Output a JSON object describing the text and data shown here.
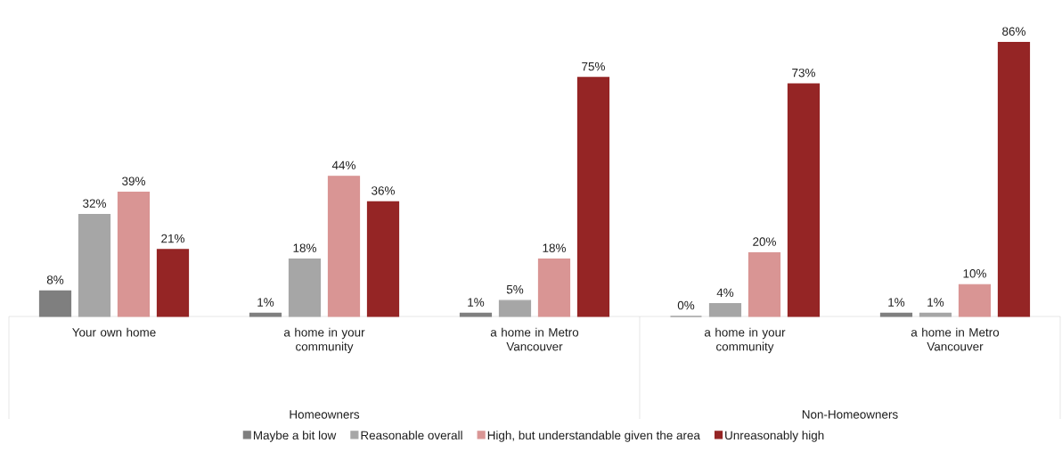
{
  "chart_data": {
    "type": "bar",
    "categories": [
      "Your own home",
      "a home in your community",
      "a home in Metro Vancouver",
      "a home in your community",
      "a home in Metro Vancouver"
    ],
    "series": [
      {
        "name": "Maybe a bit low",
        "color": "#7f7f7f",
        "values": [
          8,
          1,
          1,
          0,
          1
        ],
        "value_labels": [
          "8%",
          "1%",
          "1%",
          "0%",
          "1%"
        ]
      },
      {
        "name": "Reasonable overall",
        "color": "#a6a6a6",
        "values": [
          32,
          18,
          5,
          4,
          1
        ],
        "value_labels": [
          "32%",
          "18%",
          "5%",
          "4%",
          "1%"
        ]
      },
      {
        "name": "High, but understandable given the area",
        "color": "#d99594",
        "values": [
          39,
          44,
          18,
          20,
          10
        ],
        "value_labels": [
          "39%",
          "44%",
          "18%",
          "20%",
          "10%"
        ]
      },
      {
        "name": "Unreasonably high",
        "color": "#952525",
        "values": [
          21,
          36,
          75,
          73,
          86
        ],
        "value_labels": [
          "21%",
          "36%",
          "75%",
          "73%",
          "86%"
        ]
      }
    ],
    "annotations": [
      "Homeowners",
      "Non-Homeowners"
    ],
    "tick_labels": "x",
    "legend": "bottom"
  }
}
